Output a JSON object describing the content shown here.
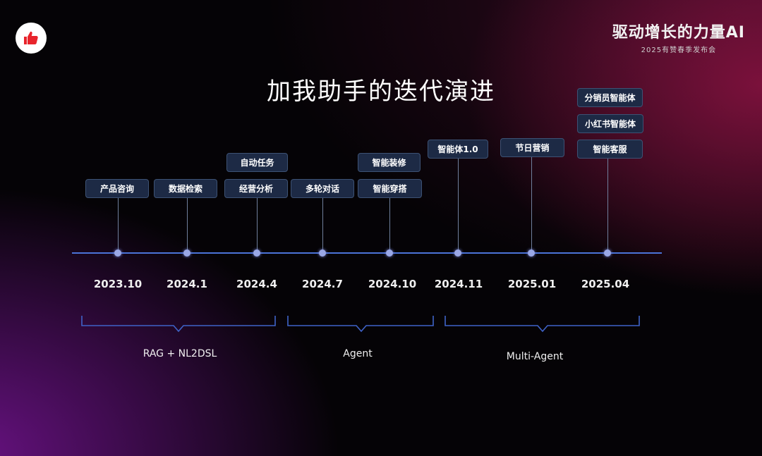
{
  "brand": {
    "title": "驱动增长的力量AI",
    "subtitle": "2025有赞春季发布会"
  },
  "icons": {
    "logo": "thumbs-up-icon"
  },
  "colors": {
    "accent": "#4b73d8",
    "logo_red": "#e8242c",
    "tag_bg": "#1d2a45"
  },
  "title": "加我助手的迭代演进",
  "timeline": [
    {
      "date": "2023.10",
      "tags": [
        "产品咨询"
      ]
    },
    {
      "date": "2024.1",
      "tags": [
        "数据检索"
      ]
    },
    {
      "date": "2024.4",
      "tags": [
        "经营分析",
        "自动任务"
      ]
    },
    {
      "date": "2024.7",
      "tags": [
        "多轮对话"
      ]
    },
    {
      "date": "2024.10",
      "tags": [
        "智能穿搭",
        "智能装修"
      ]
    },
    {
      "date": "2024.11",
      "tags": [
        "智能体1.0"
      ]
    },
    {
      "date": "2025.01",
      "tags": [
        "节日营销"
      ]
    },
    {
      "date": "2025.04",
      "tags": [
        "智能客服",
        "小红书智能体",
        "分销员智能体"
      ]
    }
  ],
  "phases": [
    "RAG + NL2DSL",
    "Agent",
    "Multi-Agent"
  ]
}
